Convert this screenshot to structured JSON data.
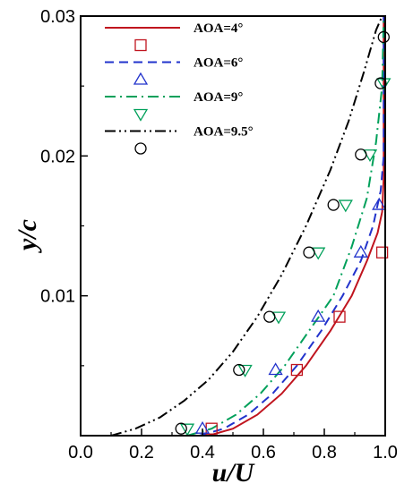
{
  "chart_data": {
    "type": "line",
    "xlabel": "u/U",
    "ylabel": "y/c",
    "xlim": [
      0.0,
      1.0
    ],
    "ylim": [
      0.0,
      0.03
    ],
    "xticks": [
      0.0,
      0.2,
      0.4,
      0.6,
      0.8,
      1.0
    ],
    "xtick_labels": [
      "0.0",
      "0.2",
      "0.4",
      "0.6",
      "0.8",
      "1.0"
    ],
    "yticks": [
      0.01,
      0.02,
      0.03
    ],
    "ytick_labels": [
      "0.01",
      "0.02",
      "0.03"
    ],
    "grid": false,
    "legend_position": "top-left",
    "series": [
      {
        "name": "AOA=4°",
        "color": "#c0141e",
        "dash": "solid",
        "marker": "square",
        "line": {
          "x": [
            0.42,
            0.5,
            0.58,
            0.66,
            0.74,
            0.82,
            0.89,
            0.94,
            0.975,
            0.99,
            0.995,
            0.995
          ],
          "y": [
            0.0,
            0.0005,
            0.0015,
            0.003,
            0.005,
            0.0075,
            0.01,
            0.0125,
            0.0145,
            0.016,
            0.0185,
            0.03
          ]
        },
        "points": {
          "x": [
            0.43,
            0.71,
            0.85,
            0.99
          ],
          "y": [
            0.0005,
            0.0047,
            0.0085,
            0.0131
          ]
        }
      },
      {
        "name": "AOA=6°",
        "color": "#2233cc",
        "dash": "dashed",
        "marker": "triangle-up",
        "line": {
          "x": [
            0.39,
            0.47,
            0.55,
            0.63,
            0.71,
            0.79,
            0.86,
            0.92,
            0.96,
            0.985,
            0.995,
            0.995
          ],
          "y": [
            0.0,
            0.0005,
            0.0015,
            0.003,
            0.005,
            0.0075,
            0.01,
            0.0125,
            0.015,
            0.0175,
            0.02,
            0.03
          ]
        },
        "points": {
          "x": [
            0.4,
            0.64,
            0.78,
            0.92,
            0.98
          ],
          "y": [
            0.0005,
            0.0047,
            0.0085,
            0.0131,
            0.0165
          ]
        }
      },
      {
        "name": "AOA=9°",
        "color": "#00a05a",
        "dash": "dashdot",
        "marker": "triangle-down",
        "line": {
          "x": [
            0.35,
            0.43,
            0.51,
            0.59,
            0.67,
            0.75,
            0.83,
            0.89,
            0.94,
            0.97,
            0.99,
            0.995
          ],
          "y": [
            0.0,
            0.0005,
            0.0015,
            0.003,
            0.005,
            0.0075,
            0.01,
            0.0135,
            0.017,
            0.021,
            0.025,
            0.03
          ]
        },
        "points": {
          "x": [
            0.35,
            0.54,
            0.65,
            0.78,
            0.87,
            0.95,
            0.995
          ],
          "y": [
            0.0005,
            0.0047,
            0.0085,
            0.0131,
            0.0165,
            0.0201,
            0.0252
          ]
        }
      },
      {
        "name": "AOA=9.5°",
        "color": "#000000",
        "dash": "dashdotdot",
        "marker": "circle",
        "line": {
          "x": [
            0.1,
            0.18,
            0.26,
            0.34,
            0.42,
            0.5,
            0.58,
            0.66,
            0.74,
            0.82,
            0.88,
            0.93,
            0.97,
            0.99
          ],
          "y": [
            0.0,
            0.0005,
            0.0013,
            0.0025,
            0.004,
            0.006,
            0.0085,
            0.0115,
            0.015,
            0.019,
            0.0225,
            0.026,
            0.029,
            0.03
          ]
        },
        "points": {
          "x": [
            0.33,
            0.52,
            0.62,
            0.75,
            0.83,
            0.92,
            0.985,
            0.995
          ],
          "y": [
            0.0005,
            0.0047,
            0.0085,
            0.0131,
            0.0165,
            0.0201,
            0.0252,
            0.0285
          ]
        }
      }
    ]
  }
}
